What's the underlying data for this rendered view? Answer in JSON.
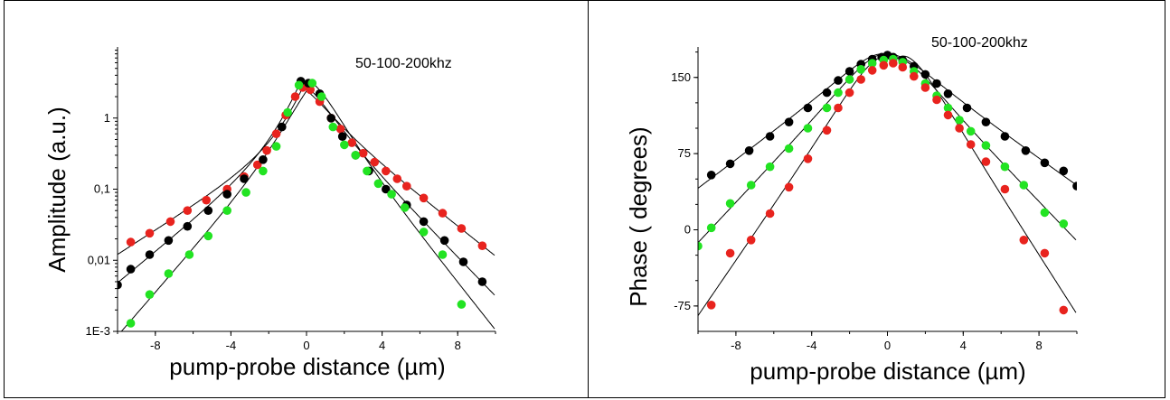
{
  "chart_data": [
    {
      "type": "scatter",
      "title": "",
      "annotation": "50-100-200khz",
      "xlabel": "pump-probe distance (µm)",
      "ylabel": "Amplitude (a.u.)",
      "xlim": [
        -10,
        10
      ],
      "ylim": [
        0.001,
        10
      ],
      "yscale": "log",
      "xticks": [
        -8,
        -4,
        0,
        4,
        8
      ],
      "yticks": [
        {
          "value": 0.001,
          "label": "1E-3"
        },
        {
          "value": 0.01,
          "label": "0,01"
        },
        {
          "value": 0.1,
          "label": "0,1"
        },
        {
          "value": 1,
          "label": "1"
        }
      ],
      "series": [
        {
          "color": "#e8231e",
          "marker": "circle",
          "x": [
            -9.3,
            -8.3,
            -7.2,
            -6.3,
            -5.3,
            -4.2,
            -3.3,
            -2.6,
            -2.1,
            -1.6,
            -1.1,
            -0.6,
            -0.2,
            0.2,
            0.7,
            1.3,
            1.8,
            2.4,
            3.0,
            3.6,
            4.2,
            4.8,
            5.3,
            6.2,
            7.2,
            8.2,
            9.3
          ],
          "y": [
            0.018,
            0.024,
            0.035,
            0.05,
            0.07,
            0.1,
            0.15,
            0.22,
            0.35,
            0.6,
            1.1,
            2.0,
            2.7,
            2.5,
            1.7,
            1.0,
            0.7,
            0.45,
            0.32,
            0.24,
            0.18,
            0.14,
            0.11,
            0.075,
            0.046,
            0.028,
            0.016
          ]
        },
        {
          "color": "#000000",
          "marker": "circle",
          "x": [
            -10,
            -9.3,
            -8.3,
            -7.3,
            -6.3,
            -5.2,
            -4.2,
            -3.3,
            -2.3,
            -1.3,
            -0.3,
            0.1,
            0.7,
            1.3,
            1.9,
            2.6,
            3.3,
            4.2,
            5.3,
            6.2,
            7.3,
            8.3,
            9.3
          ],
          "y": [
            0.0045,
            0.0075,
            0.012,
            0.019,
            0.03,
            0.05,
            0.085,
            0.14,
            0.26,
            0.75,
            3.3,
            3.1,
            2.2,
            1.0,
            0.55,
            0.3,
            0.18,
            0.1,
            0.06,
            0.035,
            0.019,
            0.0095,
            0.005
          ]
        },
        {
          "color": "#22e322",
          "marker": "circle",
          "x": [
            -9.3,
            -8.3,
            -7.3,
            -6.2,
            -5.2,
            -4.2,
            -3.2,
            -2.3,
            -1.6,
            -1.0,
            -0.4,
            0.3,
            0.8,
            1.4,
            2.0,
            2.6,
            3.2,
            3.8,
            4.5,
            5.2,
            6.2,
            7.2,
            8.2
          ],
          "y": [
            0.0013,
            0.0033,
            0.0065,
            0.012,
            0.022,
            0.05,
            0.09,
            0.18,
            0.4,
            1.2,
            2.9,
            3.1,
            2.0,
            0.75,
            0.42,
            0.3,
            0.18,
            0.12,
            0.085,
            0.055,
            0.025,
            0.012,
            0.0024
          ]
        }
      ]
    },
    {
      "type": "scatter",
      "title": "",
      "annotation": "50-100-200khz",
      "xlabel": "pump-probe distance (µm)",
      "ylabel": "Phase ( degrees)",
      "xlim": [
        -10,
        10
      ],
      "ylim": [
        -100,
        180
      ],
      "yscale": "linear",
      "xticks": [
        -8,
        -4,
        0,
        4,
        8
      ],
      "yticks": [
        {
          "value": -75,
          "label": "-75"
        },
        {
          "value": 0,
          "label": "0"
        },
        {
          "value": 75,
          "label": "75"
        },
        {
          "value": 150,
          "label": "150"
        }
      ],
      "series": [
        {
          "color": "#000000",
          "marker": "circle",
          "x": [
            -9.3,
            -8.3,
            -7.3,
            -6.2,
            -5.2,
            -4.2,
            -3.2,
            -2.6,
            -2.0,
            -1.4,
            -0.8,
            -0.3,
            0.0,
            0.3,
            0.8,
            1.4,
            2.0,
            2.6,
            3.2,
            4.2,
            5.2,
            6.2,
            7.3,
            8.3,
            9.3,
            10
          ],
          "y": [
            54,
            65,
            78,
            92,
            106,
            120,
            135,
            147,
            156,
            163,
            168,
            170,
            172,
            170,
            167,
            161,
            153,
            144,
            134,
            120,
            106,
            92,
            78,
            66,
            58,
            43
          ]
        },
        {
          "color": "#22e322",
          "marker": "circle",
          "x": [
            -10,
            -9.3,
            -8.3,
            -7.2,
            -6.2,
            -5.2,
            -4.2,
            -3.2,
            -2.6,
            -2.0,
            -1.4,
            -0.8,
            -0.2,
            0.3,
            0.8,
            1.4,
            2.0,
            2.6,
            3.2,
            3.8,
            4.4,
            5.2,
            6.2,
            7.2,
            8.3,
            9.3
          ],
          "y": [
            -16,
            2,
            26,
            44,
            62,
            80,
            100,
            120,
            135,
            148,
            158,
            164,
            167,
            168,
            165,
            156,
            144,
            132,
            120,
            108,
            97,
            83,
            62,
            44,
            17,
            6
          ]
        },
        {
          "color": "#e8231e",
          "marker": "circle",
          "x": [
            -9.3,
            -8.3,
            -7.2,
            -6.2,
            -5.2,
            -4.2,
            -3.2,
            -2.6,
            -2.0,
            -1.4,
            -0.8,
            -0.2,
            0.3,
            0.8,
            1.4,
            2.0,
            2.6,
            3.2,
            3.8,
            4.4,
            5.2,
            6.2,
            7.2,
            8.3,
            9.3
          ],
          "y": [
            -74,
            -23,
            -10,
            16,
            42,
            70,
            98,
            120,
            135,
            148,
            157,
            162,
            164,
            160,
            151,
            140,
            128,
            113,
            100,
            84,
            67,
            40,
            -10,
            -23,
            -79
          ]
        }
      ]
    }
  ]
}
